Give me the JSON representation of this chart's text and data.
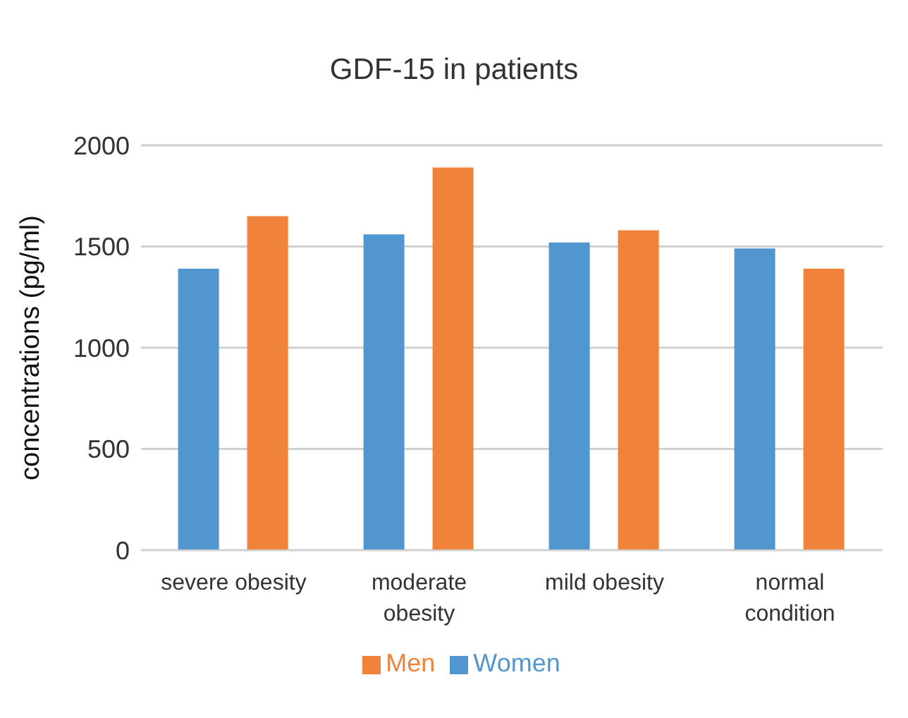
{
  "chart_data": {
    "type": "bar",
    "title": "GDF-15 in patients",
    "ylabel": "concentrations (pg/ml)",
    "categories": [
      "severe obesity",
      "moderate obesity",
      "mild obesity",
      "normal condition"
    ],
    "series": [
      {
        "name": "Women",
        "color": "#5296d0",
        "values": [
          1390,
          1560,
          1520,
          1490
        ]
      },
      {
        "name": "Men",
        "color": "#f0823a",
        "values": [
          1650,
          1890,
          1580,
          1390
        ]
      }
    ],
    "ylim": [
      0,
      2000
    ],
    "yticks": [
      0,
      500,
      1000,
      1500,
      2000
    ],
    "grid": "y",
    "legend": "bottom"
  }
}
